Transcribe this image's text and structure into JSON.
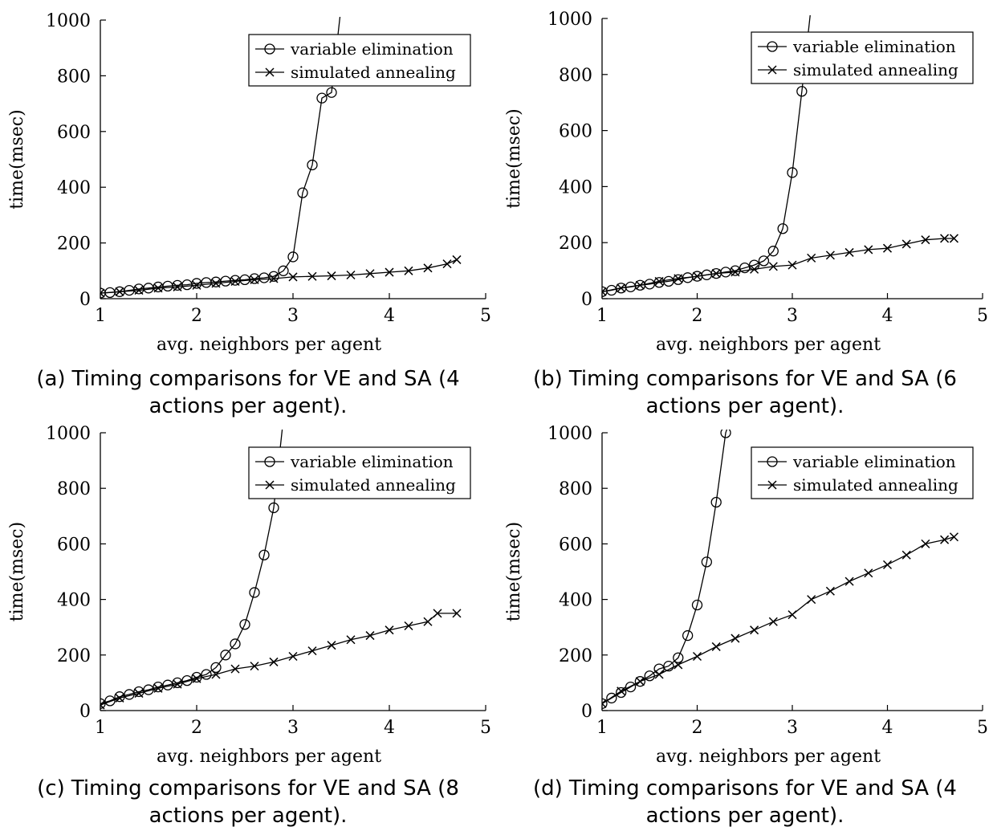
{
  "chart_data": [
    {
      "type": "line",
      "panel_label": "(a)",
      "caption": "Timing comparisons for VE and SA (4 actions per agent).",
      "xlabel": "avg. neighbors per agent",
      "ylabel": "time(msec)",
      "xlim": [
        1,
        5
      ],
      "ylim": [
        0,
        1000
      ],
      "xticks": [
        1,
        2,
        3,
        4,
        5
      ],
      "yticks": [
        0,
        200,
        400,
        600,
        800,
        1000
      ],
      "legend_position": "top-right",
      "grid": false,
      "series": [
        {
          "name": "variable elimination",
          "marker": "circle",
          "x": [
            1.0,
            1.1,
            1.2,
            1.3,
            1.4,
            1.5,
            1.6,
            1.7,
            1.8,
            1.9,
            2.0,
            2.1,
            2.2,
            2.3,
            2.4,
            2.5,
            2.6,
            2.7,
            2.8,
            2.9,
            3.0,
            3.1,
            3.2,
            3.3,
            3.4,
            3.5
          ],
          "y": [
            20,
            22,
            25,
            30,
            35,
            38,
            42,
            45,
            48,
            50,
            55,
            58,
            60,
            63,
            66,
            68,
            72,
            75,
            80,
            100,
            150,
            380,
            480,
            720,
            740,
            1050
          ]
        },
        {
          "name": "simulated annealing",
          "marker": "cross",
          "x": [
            1.0,
            1.2,
            1.4,
            1.6,
            1.8,
            2.0,
            2.2,
            2.4,
            2.6,
            2.8,
            3.0,
            3.2,
            3.4,
            3.6,
            3.8,
            4.0,
            4.2,
            4.4,
            4.6,
            4.7
          ],
          "y": [
            20,
            25,
            30,
            38,
            42,
            48,
            55,
            62,
            68,
            72,
            78,
            80,
            82,
            85,
            90,
            95,
            100,
            110,
            125,
            140
          ]
        }
      ]
    },
    {
      "type": "line",
      "panel_label": "(b)",
      "caption": "Timing comparisons for VE and SA (6 actions per agent).",
      "xlabel": "avg. neighbors per agent",
      "ylabel": "time(msec)",
      "xlim": [
        1,
        5
      ],
      "ylim": [
        0,
        1000
      ],
      "xticks": [
        1,
        2,
        3,
        4,
        5
      ],
      "yticks": [
        0,
        200,
        400,
        600,
        800,
        1000
      ],
      "legend_position": "top-right",
      "grid": false,
      "series": [
        {
          "name": "variable elimination",
          "marker": "circle",
          "x": [
            1.0,
            1.1,
            1.2,
            1.3,
            1.4,
            1.5,
            1.6,
            1.7,
            1.8,
            1.9,
            2.0,
            2.1,
            2.2,
            2.3,
            2.4,
            2.5,
            2.6,
            2.7,
            2.8,
            2.9,
            3.0,
            3.1,
            3.2,
            3.3
          ],
          "y": [
            25,
            30,
            38,
            42,
            48,
            52,
            58,
            62,
            68,
            75,
            80,
            85,
            90,
            95,
            100,
            110,
            120,
            135,
            170,
            250,
            450,
            740,
            1050,
            1100
          ]
        },
        {
          "name": "simulated annealing",
          "marker": "cross",
          "x": [
            1.0,
            1.2,
            1.4,
            1.6,
            1.8,
            2.0,
            2.2,
            2.4,
            2.6,
            2.8,
            3.0,
            3.2,
            3.4,
            3.6,
            3.8,
            4.0,
            4.2,
            4.4,
            4.6,
            4.7
          ],
          "y": [
            25,
            38,
            48,
            62,
            72,
            80,
            90,
            95,
            105,
            115,
            120,
            145,
            155,
            165,
            175,
            180,
            195,
            210,
            215,
            215
          ]
        }
      ]
    },
    {
      "type": "line",
      "panel_label": "(c)",
      "caption": "Timing comparisons for VE and SA (8 actions per agent).",
      "xlabel": "avg. neighbors per agent",
      "ylabel": "time(msec)",
      "xlim": [
        1,
        5
      ],
      "ylim": [
        0,
        1000
      ],
      "xticks": [
        1,
        2,
        3,
        4,
        5
      ],
      "yticks": [
        0,
        200,
        400,
        600,
        800,
        1000
      ],
      "legend_position": "top-right",
      "grid": false,
      "series": [
        {
          "name": "variable elimination",
          "marker": "circle",
          "x": [
            1.0,
            1.1,
            1.2,
            1.3,
            1.4,
            1.5,
            1.6,
            1.7,
            1.8,
            1.9,
            2.0,
            2.1,
            2.2,
            2.3,
            2.4,
            2.5,
            2.6,
            2.7,
            2.8,
            2.9
          ],
          "y": [
            25,
            35,
            50,
            58,
            68,
            75,
            85,
            92,
            100,
            108,
            120,
            130,
            155,
            200,
            240,
            310,
            425,
            560,
            730,
            1050
          ]
        },
        {
          "name": "simulated annealing",
          "marker": "cross",
          "x": [
            1.0,
            1.2,
            1.4,
            1.6,
            1.8,
            2.0,
            2.2,
            2.4,
            2.6,
            2.8,
            3.0,
            3.2,
            3.4,
            3.6,
            3.8,
            4.0,
            4.2,
            4.4,
            4.5,
            4.7
          ],
          "y": [
            20,
            45,
            62,
            80,
            95,
            115,
            130,
            150,
            160,
            175,
            195,
            215,
            235,
            255,
            270,
            290,
            305,
            320,
            350,
            350
          ]
        }
      ]
    },
    {
      "type": "line",
      "panel_label": "(d)",
      "caption": "Timing comparisons for VE and SA (4 actions per agent).",
      "xlabel": "avg. neighbors per agent",
      "ylabel": "time(msec)",
      "xlim": [
        1,
        5
      ],
      "ylim": [
        0,
        1000
      ],
      "xticks": [
        1,
        2,
        3,
        4,
        5
      ],
      "yticks": [
        0,
        200,
        400,
        600,
        800,
        1000
      ],
      "legend_position": "top-right",
      "grid": false,
      "series": [
        {
          "name": "variable elimination",
          "marker": "circle",
          "x": [
            1.0,
            1.1,
            1.2,
            1.3,
            1.4,
            1.5,
            1.6,
            1.7,
            1.8,
            1.9,
            2.0,
            2.1,
            2.2,
            2.3,
            2.35
          ],
          "y": [
            25,
            45,
            65,
            85,
            105,
            125,
            150,
            160,
            190,
            270,
            380,
            535,
            750,
            1000,
            1050
          ]
        },
        {
          "name": "simulated annealing",
          "marker": "cross",
          "x": [
            1.0,
            1.2,
            1.4,
            1.6,
            1.8,
            2.0,
            2.2,
            2.4,
            2.6,
            2.8,
            3.0,
            3.2,
            3.4,
            3.6,
            3.8,
            4.0,
            4.2,
            4.4,
            4.6,
            4.7
          ],
          "y": [
            25,
            70,
            105,
            130,
            165,
            195,
            230,
            260,
            290,
            320,
            345,
            400,
            430,
            465,
            495,
            525,
            560,
            600,
            615,
            625
          ]
        }
      ]
    }
  ]
}
